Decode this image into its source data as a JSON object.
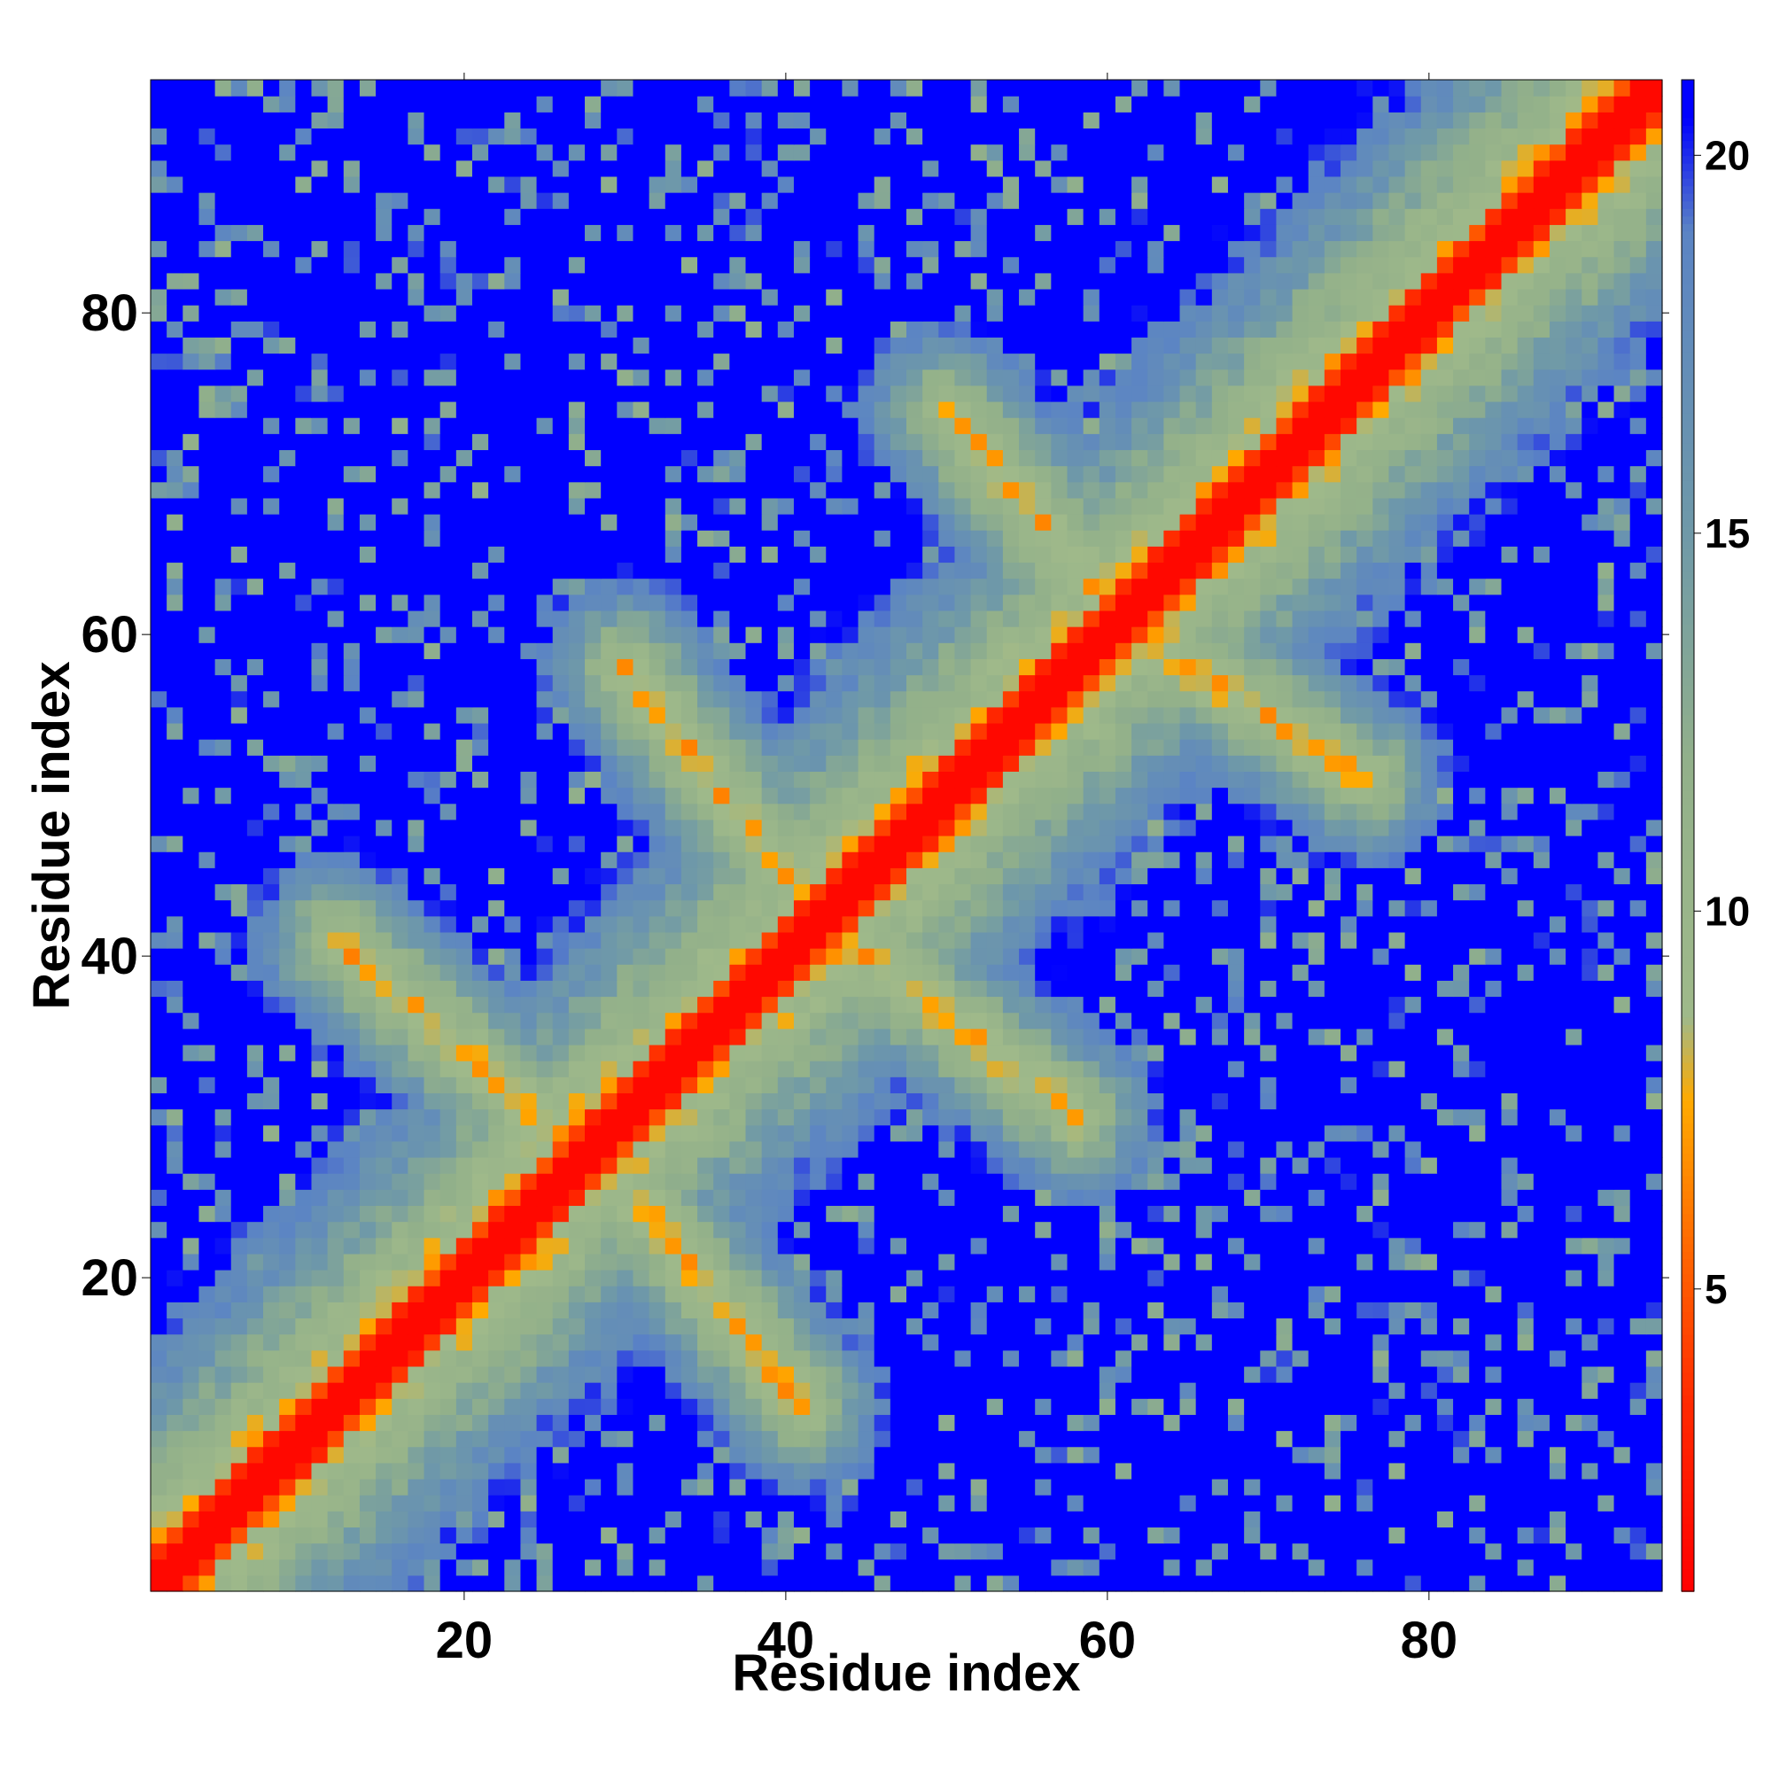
{
  "chart_data": {
    "type": "heatmap",
    "title": "",
    "xlabel": "Residue index",
    "ylabel": "Residue index",
    "n_residues": 94,
    "xlim": [
      1,
      94
    ],
    "ylim": [
      1,
      94
    ],
    "x_ticks": [
      "20",
      "40",
      "60",
      "80"
    ],
    "y_ticks": [
      "20",
      "40",
      "60",
      "80"
    ],
    "colorbar": {
      "ticks": [
        "5",
        "10",
        "15",
        "20"
      ],
      "range": [
        1,
        21
      ],
      "stops": [
        {
          "value": 1.0,
          "color": "#ff0000"
        },
        {
          "value": 3.5,
          "color": "#ff2a00"
        },
        {
          "value": 5.5,
          "color": "#ff6600"
        },
        {
          "value": 7.5,
          "color": "#ffaa00"
        },
        {
          "value": 8.6,
          "color": "#9fb98a"
        },
        {
          "value": 12.0,
          "color": "#92b08a"
        },
        {
          "value": 15.0,
          "color": "#6f99a8"
        },
        {
          "value": 19.0,
          "color": "#5b84c4"
        },
        {
          "value": 20.5,
          "color": "#0000ff"
        }
      ],
      "saturated_color": "#0000ff"
    },
    "description_of_pattern": {
      "main_diagonal": "distance ~1-3 along i=j",
      "antiparallel_contacts": [
        {
          "from": [
            12,
            41
          ],
          "to": [
            28,
            27
          ]
        },
        {
          "from": [
            29,
            27
          ],
          "to": [
            41,
            12
          ]
        },
        {
          "from": [
            30,
            58
          ],
          "to": [
            40,
            45
          ]
        },
        {
          "from": [
            45,
            40
          ],
          "to": [
            58,
            30
          ]
        },
        {
          "from": [
            50,
            74
          ],
          "to": [
            60,
            62
          ]
        },
        {
          "from": [
            62,
            60
          ],
          "to": [
            76,
            51
          ]
        }
      ]
    }
  }
}
